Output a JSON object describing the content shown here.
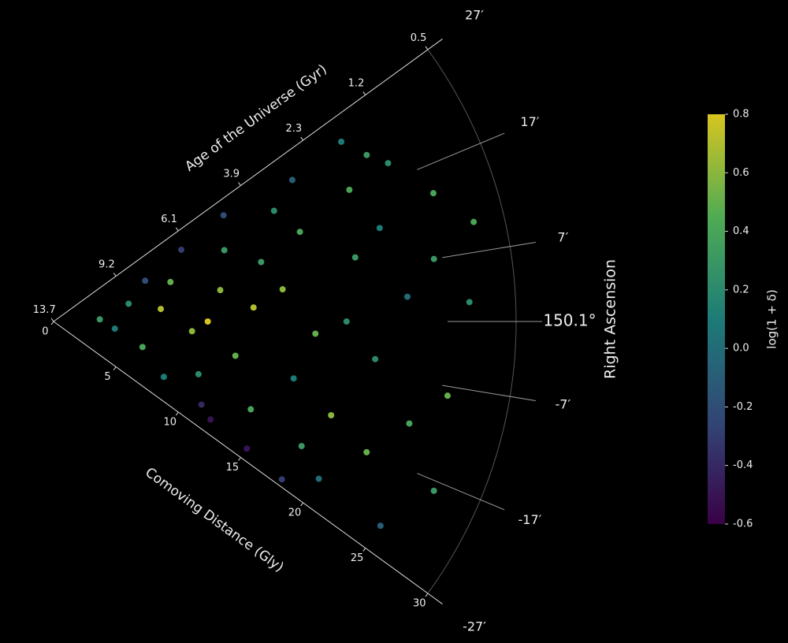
{
  "chart_data": {
    "type": "wedge",
    "rlim": [
      0,
      30
    ],
    "rticks": [
      0,
      5,
      10,
      15,
      20,
      25,
      30
    ],
    "age_ticks": [
      {
        "value": 0,
        "label": "13.7"
      },
      {
        "value": 5,
        "label": "9.2"
      },
      {
        "value": 10,
        "label": "6.1"
      },
      {
        "value": 15,
        "label": "3.9"
      },
      {
        "value": 20,
        "label": "2.3"
      },
      {
        "value": 25,
        "label": "1.2"
      },
      {
        "value": 30,
        "label": "0.5"
      }
    ],
    "thetalim": [
      -27,
      27
    ],
    "thetaticks": [
      {
        "value": 27,
        "label": "27′"
      },
      {
        "value": 17,
        "label": "17′"
      },
      {
        "value": 7,
        "label": "7′"
      },
      {
        "value": 0,
        "label": "150.1°"
      },
      {
        "value": -7,
        "label": "-7′"
      },
      {
        "value": -17,
        "label": "-17′"
      },
      {
        "value": -27,
        "label": "-27′"
      }
    ],
    "age_label": "Age of the Universe (Gyr)",
    "r_label": "Comoving Distance (Gly)",
    "theta_label": "Right Ascension",
    "colorbar_label": "log(1 + δ)",
    "clim": [
      -0.6,
      0.8
    ],
    "cticks": [
      0.8,
      0.6,
      0.4,
      0.2,
      {
        "value": 0,
        "label": "0.0"
      },
      -0.2,
      -0.4,
      -0.6
    ],
    "colormap": "viridis",
    "points": {
      "r": [
        3,
        4,
        5,
        6,
        6.5,
        7,
        8,
        8,
        9,
        9.5,
        10,
        10,
        11,
        11,
        12,
        12,
        13,
        13,
        14,
        14,
        15,
        15,
        16,
        16,
        17,
        17,
        18,
        18,
        19,
        19,
        20,
        20,
        21,
        21,
        22,
        22,
        23,
        23,
        24,
        24,
        25,
        25,
        26,
        26,
        27,
        27,
        28,
        22,
        18,
        12
      ],
      "theta": [
        2,
        -5,
        10,
        -12,
        18,
        5,
        -20,
        14,
        -3,
        22,
        0,
        -15,
        8,
        -22,
        17,
        -8,
        3,
        24,
        -18,
        12,
        -25,
        6,
        20,
        -10,
        -2,
        15,
        -20,
        23,
        0,
        -14,
        9,
        -23,
        18,
        -5,
        -17,
        12,
        21,
        3,
        -12,
        19,
        -24,
        7,
        14,
        -8,
        2,
        -18,
        10,
        24,
        -26,
        -24
      ],
      "c": [
        0.3,
        0.1,
        0.2,
        0.4,
        -0.2,
        0.7,
        0.1,
        0.5,
        0.6,
        -0.3,
        0.8,
        0.2,
        0.6,
        -0.4,
        0.3,
        0.5,
        0.7,
        -0.2,
        0.4,
        0.3,
        -0.5,
        0.6,
        0.2,
        0.1,
        0.5,
        0.4,
        0.3,
        -0.1,
        0.2,
        0.6,
        0.3,
        0.0,
        0.4,
        0.2,
        0.5,
        0.1,
        0.3,
        0.0,
        0.4,
        0.2,
        -0.1,
        0.3,
        0.4,
        0.5,
        0.2,
        0.3,
        0.4,
        0.1,
        -0.3,
        -0.5
      ]
    }
  }
}
